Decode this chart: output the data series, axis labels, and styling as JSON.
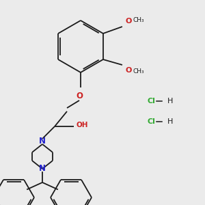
{
  "bg_color": "#ebebeb",
  "bond_color": "#1a1a1a",
  "N_color": "#2222cc",
  "O_color": "#cc2222",
  "Cl_color": "#33aa33",
  "lw": 1.3,
  "fs": 7.5,
  "fig_w": 3.0,
  "fig_h": 3.0,
  "dpi": 100,
  "xlim": [
    0,
    300
  ],
  "ylim": [
    0,
    300
  ],
  "methoxy_text": "O",
  "hcl1_y": 148,
  "hcl2_y": 178,
  "hcl_x": 215
}
